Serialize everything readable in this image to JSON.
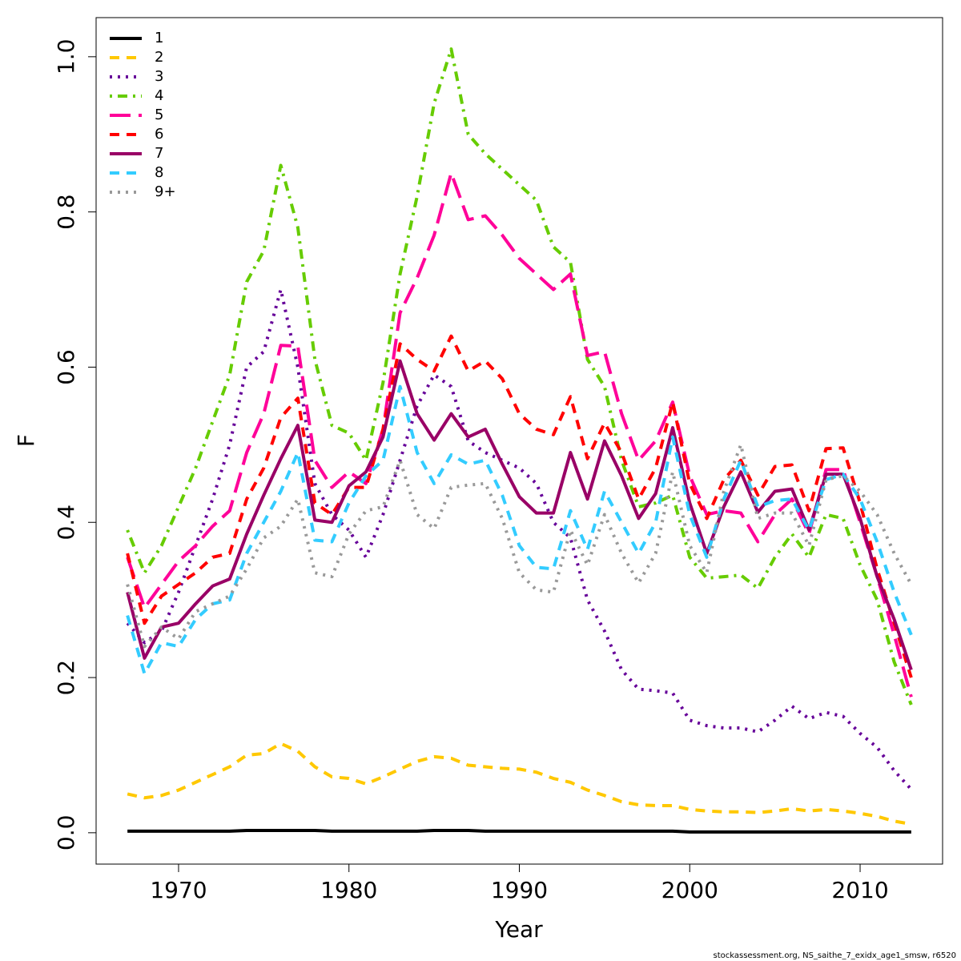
{
  "chart_data": {
    "type": "line",
    "xlabel": "Year",
    "ylabel": "F",
    "footnote": "stockassessment.org, NS_saithe_7_exidx_age1_smsw, r6520",
    "legend": "topleft",
    "x": [
      1967,
      1968,
      1969,
      1970,
      1971,
      1972,
      1973,
      1974,
      1975,
      1976,
      1977,
      1978,
      1979,
      1980,
      1981,
      1982,
      1983,
      1984,
      1985,
      1986,
      1987,
      1988,
      1989,
      1990,
      1991,
      1992,
      1993,
      1994,
      1995,
      1996,
      1997,
      1998,
      1999,
      2000,
      2001,
      2002,
      2003,
      2004,
      2005,
      2006,
      2007,
      2008,
      2009,
      2010,
      2011,
      2012,
      2013
    ],
    "xlim": [
      1965.16,
      2014.84
    ],
    "ylim": [
      -0.0404,
      1.0504
    ],
    "xticks": [
      1970,
      1980,
      1990,
      2000,
      2010
    ],
    "yticks": [
      {
        "value": 0,
        "label": "0.0"
      },
      0.2,
      0.4,
      0.6,
      0.8,
      {
        "value": 1,
        "label": "1.0"
      }
    ],
    "series": [
      {
        "name": "1",
        "color": "#000000",
        "linestyle": "solid",
        "values": [
          0.002,
          0.002,
          0.002,
          0.002,
          0.002,
          0.002,
          0.002,
          0.003,
          0.003,
          0.003,
          0.003,
          0.003,
          0.002,
          0.002,
          0.002,
          0.002,
          0.002,
          0.002,
          0.003,
          0.003,
          0.003,
          0.002,
          0.002,
          0.002,
          0.002,
          0.002,
          0.002,
          0.002,
          0.002,
          0.002,
          0.002,
          0.002,
          0.002,
          0.001,
          0.001,
          0.001,
          0.001,
          0.001,
          0.001,
          0.001,
          0.001,
          0.001,
          0.001,
          0.001,
          0.001,
          0.001,
          0.001
        ]
      },
      {
        "name": "2",
        "color": "#ffc800",
        "linestyle": "dashed",
        "values": [
          0.05,
          0.045,
          0.048,
          0.055,
          0.065,
          0.075,
          0.085,
          0.1,
          0.102,
          0.115,
          0.105,
          0.085,
          0.072,
          0.07,
          0.063,
          0.072,
          0.082,
          0.092,
          0.098,
          0.096,
          0.087,
          0.085,
          0.083,
          0.082,
          0.078,
          0.07,
          0.065,
          0.055,
          0.048,
          0.04,
          0.036,
          0.035,
          0.035,
          0.03,
          0.028,
          0.027,
          0.027,
          0.026,
          0.028,
          0.031,
          0.028,
          0.03,
          0.028,
          0.025,
          0.021,
          0.015,
          0.011
        ]
      },
      {
        "name": "3",
        "color": "#660099",
        "linestyle": "dotted",
        "values": [
          0.27,
          0.245,
          0.26,
          0.31,
          0.37,
          0.43,
          0.5,
          0.6,
          0.62,
          0.7,
          0.6,
          0.45,
          0.41,
          0.39,
          0.355,
          0.41,
          0.48,
          0.55,
          0.59,
          0.575,
          0.505,
          0.49,
          0.48,
          0.47,
          0.45,
          0.4,
          0.38,
          0.3,
          0.26,
          0.21,
          0.185,
          0.183,
          0.18,
          0.145,
          0.138,
          0.135,
          0.135,
          0.13,
          0.145,
          0.163,
          0.147,
          0.155,
          0.15,
          0.128,
          0.11,
          0.08,
          0.056
        ]
      },
      {
        "name": "4",
        "color": "#66cc00",
        "linestyle": "dotdash",
        "values": [
          0.39,
          0.335,
          0.37,
          0.42,
          0.47,
          0.53,
          0.59,
          0.71,
          0.75,
          0.86,
          0.78,
          0.61,
          0.525,
          0.515,
          0.48,
          0.58,
          0.72,
          0.82,
          0.94,
          1.01,
          0.9,
          0.875,
          0.855,
          0.835,
          0.815,
          0.755,
          0.735,
          0.61,
          0.575,
          0.48,
          0.42,
          0.425,
          0.435,
          0.355,
          0.328,
          0.33,
          0.332,
          0.315,
          0.355,
          0.385,
          0.355,
          0.41,
          0.405,
          0.345,
          0.3,
          0.22,
          0.165
        ]
      },
      {
        "name": "5",
        "color": "#ff0099",
        "linestyle": "longdash",
        "values": [
          0.355,
          0.29,
          0.32,
          0.35,
          0.37,
          0.395,
          0.415,
          0.49,
          0.54,
          0.628,
          0.627,
          0.48,
          0.445,
          0.465,
          0.45,
          0.52,
          0.67,
          0.715,
          0.77,
          0.85,
          0.79,
          0.795,
          0.77,
          0.74,
          0.72,
          0.7,
          0.72,
          0.615,
          0.62,
          0.54,
          0.48,
          0.505,
          0.555,
          0.46,
          0.41,
          0.415,
          0.412,
          0.375,
          0.41,
          0.43,
          0.385,
          0.468,
          0.468,
          0.4,
          0.33,
          0.255,
          0.175
        ]
      },
      {
        "name": "6",
        "color": "#ff0000",
        "linestyle": "dashed",
        "values": [
          0.36,
          0.27,
          0.305,
          0.32,
          0.335,
          0.355,
          0.36,
          0.43,
          0.47,
          0.535,
          0.56,
          0.425,
          0.41,
          0.445,
          0.445,
          0.52,
          0.63,
          0.61,
          0.595,
          0.64,
          0.595,
          0.608,
          0.585,
          0.54,
          0.52,
          0.513,
          0.562,
          0.482,
          0.528,
          0.49,
          0.43,
          0.47,
          0.555,
          0.45,
          0.405,
          0.455,
          0.48,
          0.435,
          0.472,
          0.474,
          0.415,
          0.495,
          0.496,
          0.425,
          0.34,
          0.27,
          0.2
        ]
      },
      {
        "name": "7",
        "color": "#990066",
        "linestyle": "solid",
        "values": [
          0.31,
          0.225,
          0.265,
          0.27,
          0.295,
          0.318,
          0.327,
          0.385,
          0.435,
          0.482,
          0.525,
          0.403,
          0.4,
          0.447,
          0.465,
          0.51,
          0.608,
          0.54,
          0.506,
          0.54,
          0.51,
          0.52,
          0.475,
          0.433,
          0.412,
          0.412,
          0.49,
          0.43,
          0.505,
          0.46,
          0.405,
          0.437,
          0.522,
          0.425,
          0.36,
          0.42,
          0.465,
          0.413,
          0.44,
          0.443,
          0.39,
          0.462,
          0.462,
          0.405,
          0.33,
          0.275,
          0.21
        ]
      },
      {
        "name": "8",
        "color": "#33ccff",
        "linestyle": "dashed",
        "values": [
          0.28,
          0.205,
          0.245,
          0.24,
          0.275,
          0.295,
          0.3,
          0.36,
          0.4,
          0.44,
          0.49,
          0.377,
          0.375,
          0.425,
          0.46,
          0.48,
          0.575,
          0.49,
          0.45,
          0.487,
          0.475,
          0.48,
          0.435,
          0.37,
          0.342,
          0.34,
          0.415,
          0.365,
          0.44,
          0.4,
          0.36,
          0.4,
          0.51,
          0.41,
          0.355,
          0.43,
          0.48,
          0.42,
          0.428,
          0.43,
          0.39,
          0.455,
          0.462,
          0.43,
          0.375,
          0.31,
          0.255
        ]
      },
      {
        "name": "9+",
        "color": "#999999",
        "linestyle": "dotted",
        "values": [
          0.32,
          0.24,
          0.265,
          0.25,
          0.285,
          0.295,
          0.305,
          0.34,
          0.38,
          0.395,
          0.43,
          0.335,
          0.33,
          0.385,
          0.415,
          0.42,
          0.48,
          0.41,
          0.392,
          0.445,
          0.448,
          0.45,
          0.405,
          0.335,
          0.313,
          0.31,
          0.39,
          0.345,
          0.41,
          0.36,
          0.322,
          0.36,
          0.465,
          0.37,
          0.335,
          0.44,
          0.5,
          0.405,
          0.412,
          0.412,
          0.37,
          0.455,
          0.46,
          0.44,
          0.41,
          0.36,
          0.32
        ]
      }
    ]
  }
}
